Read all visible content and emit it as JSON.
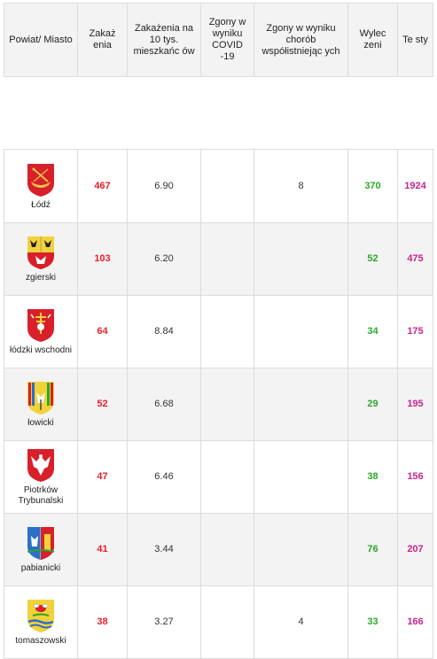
{
  "headers": {
    "region": "Powiat/ Miasto",
    "cases": "Zakaż enia",
    "per10k": "Zakażenia na 10 tys. mieszkańc ów",
    "deaths_covid": "Zgony w wyniku COVID -19",
    "deaths_comorb": "Zgony w wyniku chorób współistniejąc ych",
    "recovered": "Wylec zeni",
    "tests": "Te sty"
  },
  "rows": [
    {
      "name": "Łódź",
      "crest": "lodz-boat-crest-icon",
      "cases": "467",
      "per10k": "6.90",
      "deaths_covid": "",
      "deaths_comorb": "8",
      "recovered": "370",
      "tests": "1924"
    },
    {
      "name": "zgierski",
      "crest": "zgierski-eagle-crest-icon",
      "cases": "103",
      "per10k": "6.20",
      "deaths_covid": "",
      "deaths_comorb": "",
      "recovered": "52",
      "tests": "475"
    },
    {
      "name": "łódzki wschodni",
      "crest": "lodzki-wschodni-cross-crest-icon",
      "cases": "64",
      "per10k": "8.84",
      "deaths_covid": "",
      "deaths_comorb": "",
      "recovered": "34",
      "tests": "175"
    },
    {
      "name": "łowicki",
      "crest": "lowicki-striped-crest-icon",
      "cases": "52",
      "per10k": "6.68",
      "deaths_covid": "",
      "deaths_comorb": "",
      "recovered": "29",
      "tests": "195"
    },
    {
      "name": "Piotrków Trybunalski",
      "crest": "piotrkow-white-eagle-crest-icon",
      "cases": "47",
      "per10k": "6.46",
      "deaths_covid": "",
      "deaths_comorb": "",
      "recovered": "38",
      "tests": "156"
    },
    {
      "name": "pabianicki",
      "crest": "pabianicki-crest-icon",
      "cases": "41",
      "per10k": "3.44",
      "deaths_covid": "",
      "deaths_comorb": "",
      "recovered": "76",
      "tests": "207"
    },
    {
      "name": "tomaszowski",
      "crest": "tomaszowski-bee-crest-icon",
      "cases": "38",
      "per10k": "3.27",
      "deaths_covid": "",
      "deaths_comorb": "4",
      "recovered": "33",
      "tests": "166"
    }
  ],
  "colors": {
    "cases": "#e8202a",
    "recovered": "#2aa828",
    "tests": "#c8258c",
    "header_bg": "#f3f3f3"
  }
}
